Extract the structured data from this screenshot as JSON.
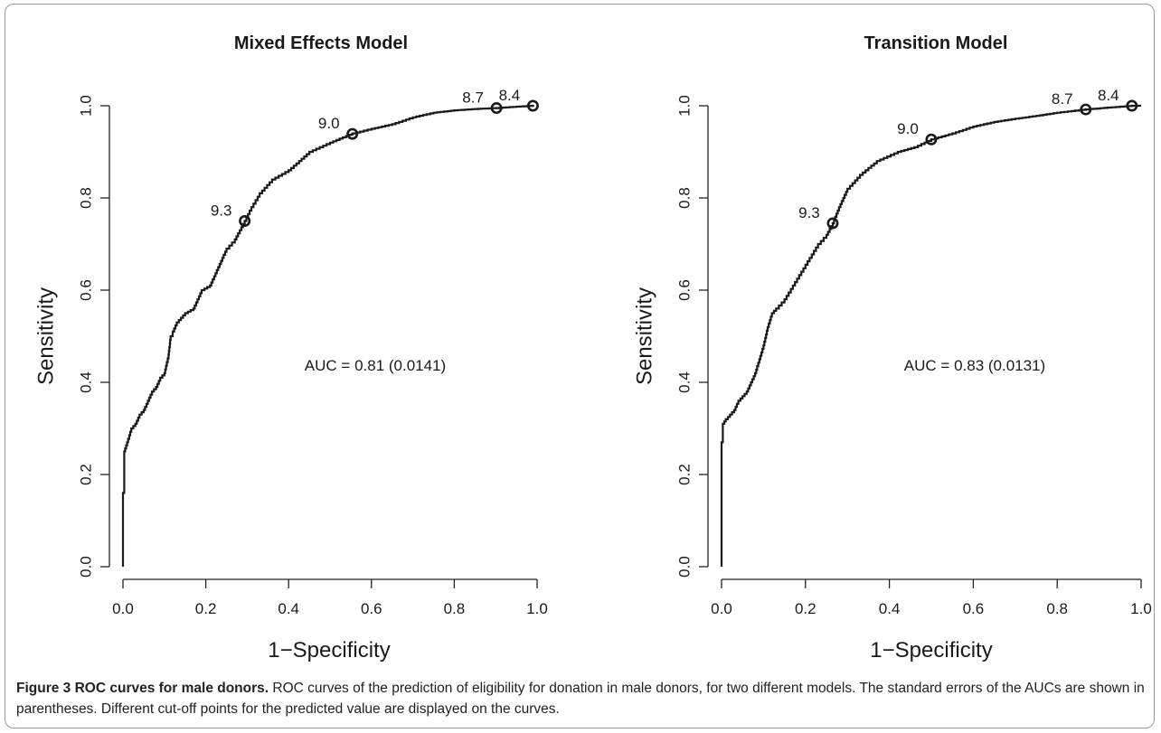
{
  "caption": {
    "label": "Figure 3",
    "title": "ROC curves for male donors.",
    "text": "ROC curves of the prediction of eligibility for donation in male donors, for two different models. The standard errors of the AUCs are shown in parentheses. Different cut-off points for the predicted value are displayed on the curves."
  },
  "chart_data": [
    {
      "type": "line",
      "title": "Mixed Effects Model",
      "xlabel": "1−Specificity",
      "ylabel": "Sensitivity",
      "xlim": [
        0,
        1
      ],
      "ylim": [
        0,
        1
      ],
      "xticks": [
        "0.0",
        "0.2",
        "0.4",
        "0.6",
        "0.8",
        "1.0"
      ],
      "yticks": [
        "0.0",
        "0.2",
        "0.4",
        "0.6",
        "0.8",
        "1.0"
      ],
      "annotation": "AUC = 0.81 (0.0141)",
      "grid": false,
      "series": [
        {
          "x": [
            0,
            0,
            0.003,
            0.003,
            0.01,
            0.02,
            0.03,
            0.04,
            0.05,
            0.06,
            0.07,
            0.08,
            0.09,
            0.1,
            0.11,
            0.115,
            0.12,
            0.13,
            0.14,
            0.15,
            0.17,
            0.19,
            0.21,
            0.23,
            0.24,
            0.25,
            0.27,
            0.294,
            0.31,
            0.33,
            0.36,
            0.4,
            0.45,
            0.5,
            0.554,
            0.6,
            0.65,
            0.7,
            0.75,
            0.8,
            0.85,
            0.9,
            0.95,
            0.99
          ],
          "y": [
            0,
            0.16,
            0.16,
            0.25,
            0.27,
            0.3,
            0.31,
            0.33,
            0.34,
            0.36,
            0.38,
            0.39,
            0.41,
            0.42,
            0.46,
            0.5,
            0.51,
            0.53,
            0.54,
            0.55,
            0.56,
            0.6,
            0.61,
            0.65,
            0.67,
            0.69,
            0.71,
            0.75,
            0.78,
            0.81,
            0.84,
            0.86,
            0.9,
            0.92,
            0.94,
            0.95,
            0.96,
            0.975,
            0.985,
            0.99,
            0.993,
            0.995,
            0.998,
            1.0
          ]
        }
      ],
      "cutoffs": [
        {
          "label": "9.3",
          "x": 0.294,
          "y": 0.75
        },
        {
          "label": "9.0",
          "x": 0.554,
          "y": 0.939
        },
        {
          "label": "8.7",
          "x": 0.902,
          "y": 0.995
        },
        {
          "label": "8.4",
          "x": 0.99,
          "y": 1.0
        }
      ]
    },
    {
      "type": "line",
      "title": "Transition Model",
      "xlabel": "1−Specificity",
      "ylabel": "Sensitivity",
      "xlim": [
        0,
        1
      ],
      "ylim": [
        0,
        1
      ],
      "xticks": [
        "0.0",
        "0.2",
        "0.4",
        "0.6",
        "0.8",
        "1.0"
      ],
      "yticks": [
        "0.0",
        "0.2",
        "0.4",
        "0.6",
        "0.8",
        "1.0"
      ],
      "annotation": "AUC = 0.83 (0.0131)",
      "grid": false,
      "series": [
        {
          "x": [
            0,
            0,
            0.003,
            0.003,
            0.01,
            0.02,
            0.03,
            0.04,
            0.05,
            0.06,
            0.07,
            0.08,
            0.09,
            0.1,
            0.11,
            0.12,
            0.13,
            0.15,
            0.17,
            0.19,
            0.21,
            0.23,
            0.25,
            0.265,
            0.28,
            0.3,
            0.33,
            0.37,
            0.42,
            0.46,
            0.5,
            0.55,
            0.6,
            0.65,
            0.7,
            0.75,
            0.8,
            0.868,
            0.92,
            0.95,
            0.98,
            1.0
          ],
          "y": [
            0,
            0.27,
            0.27,
            0.31,
            0.32,
            0.33,
            0.34,
            0.36,
            0.37,
            0.38,
            0.4,
            0.42,
            0.45,
            0.48,
            0.52,
            0.55,
            0.56,
            0.58,
            0.61,
            0.64,
            0.67,
            0.7,
            0.72,
            0.745,
            0.78,
            0.82,
            0.85,
            0.88,
            0.9,
            0.91,
            0.927,
            0.94,
            0.955,
            0.965,
            0.972,
            0.978,
            0.985,
            0.992,
            0.996,
            0.998,
            1.0,
            1.0
          ]
        }
      ],
      "cutoffs": [
        {
          "label": "9.3",
          "x": 0.265,
          "y": 0.745
        },
        {
          "label": "9.0",
          "x": 0.5,
          "y": 0.927
        },
        {
          "label": "8.7",
          "x": 0.868,
          "y": 0.992
        },
        {
          "label": "8.4",
          "x": 0.978,
          "y": 1.0
        }
      ]
    }
  ]
}
